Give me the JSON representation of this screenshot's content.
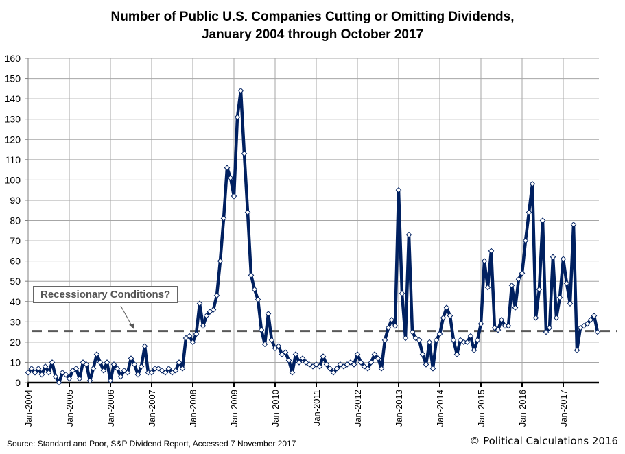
{
  "chart_data": {
    "type": "line",
    "title": "Number of Public U.S. Companies Cutting or Omitting Dividends,",
    "subtitle": "January 2004 through October 2017",
    "xlabel": "",
    "ylabel": "",
    "ylim": [
      0,
      160
    ],
    "yticks": [
      0,
      10,
      20,
      30,
      40,
      50,
      60,
      70,
      80,
      90,
      100,
      110,
      120,
      130,
      140,
      150,
      160
    ],
    "xtick_labels": [
      "Jan-2004",
      "Jan-2005",
      "Jan-2006",
      "Jan-2007",
      "Jan-2008",
      "Jan-2009",
      "Jan-2010",
      "Jan-2011",
      "Jan-2012",
      "Jan-2013",
      "Jan-2014",
      "Jan-2015",
      "Jan-2016",
      "Jan-2017"
    ],
    "x_start": "Jan-2004",
    "x_end": "Oct-2017",
    "grid": true,
    "series": [
      {
        "name": "Companies cutting or omitting dividends",
        "color": "#002060",
        "marker": "diamond",
        "values": [
          5,
          7,
          5,
          7,
          4,
          8,
          5,
          10,
          3,
          0,
          5,
          4,
          2,
          6,
          7,
          2,
          10,
          9,
          1,
          7,
          14,
          10,
          6,
          10,
          1,
          9,
          7,
          3,
          6,
          5,
          12,
          9,
          4,
          8,
          18,
          5,
          5,
          7,
          7,
          6,
          5,
          7,
          5,
          6,
          10,
          7,
          22,
          23,
          20,
          24,
          39,
          28,
          33,
          35,
          36,
          43,
          60,
          81,
          106,
          101,
          92,
          131,
          144,
          113,
          84,
          53,
          46,
          41,
          26,
          19,
          34,
          21,
          17,
          18,
          14,
          15,
          11,
          5,
          14,
          10,
          12,
          10,
          9,
          8,
          9,
          8,
          13,
          9,
          7,
          5,
          7,
          9,
          8,
          9,
          10,
          9,
          14,
          10,
          8,
          7,
          10,
          14,
          12,
          7,
          21,
          27,
          31,
          28,
          95,
          44,
          22,
          73,
          25,
          22,
          21,
          14,
          9,
          20,
          7,
          21,
          24,
          32,
          37,
          33,
          21,
          14,
          21,
          20,
          20,
          23,
          16,
          21,
          29,
          60,
          47,
          65,
          27,
          26,
          31,
          28,
          28,
          48,
          37,
          51,
          54,
          70,
          84,
          98,
          32,
          46,
          80,
          25,
          27,
          62,
          32,
          42,
          61,
          49,
          39,
          78,
          16,
          27,
          28,
          29,
          31,
          33,
          25
        ]
      }
    ],
    "reference_lines": [
      {
        "value": 25.5,
        "style": "dashed",
        "color": "#595959",
        "label": "Recessionary Conditions?"
      }
    ],
    "annotations": [
      {
        "text": "Recessionary Conditions?",
        "points_to": "reference line"
      }
    ],
    "legend": "none"
  },
  "source_note": "Source:  Standard and Poor,  S&P Dividend  Report,  Accessed 7 November  2017",
  "copyright_note": "© Political Calculations 2016"
}
